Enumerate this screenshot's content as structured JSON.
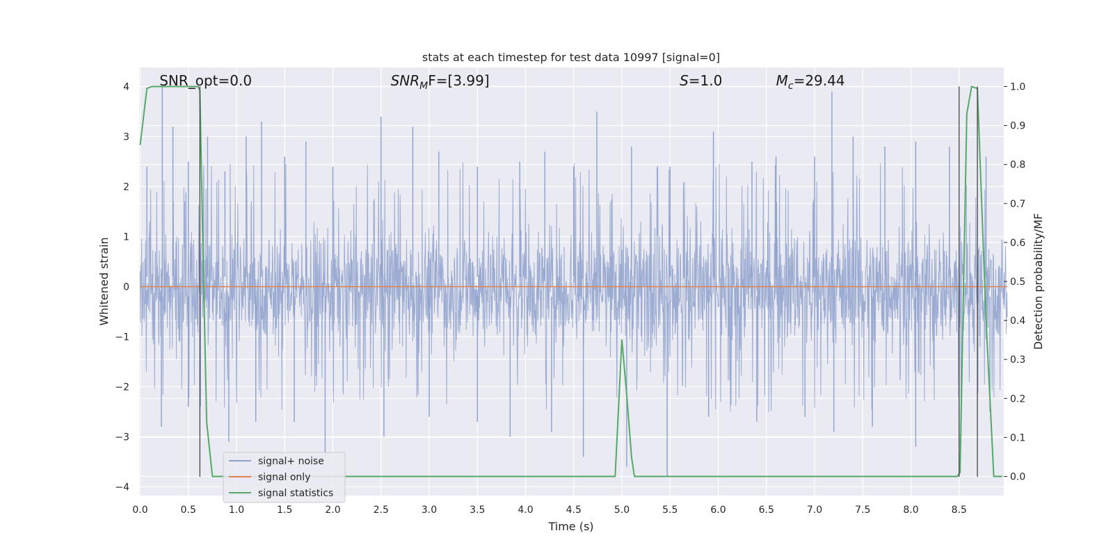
{
  "chart_data": {
    "type": "line",
    "title": "stats at each timestep for test data 10997 [signal=0]",
    "xlabel": "Time (s)",
    "ylabel": "Whitened strain",
    "y2label": "Detection probability/MF",
    "xlim": [
      0.0,
      9.0
    ],
    "ylim": [
      -4.2,
      4.2
    ],
    "y2lim": [
      -0.047,
      1.047
    ],
    "xticks": [
      0.0,
      0.5,
      1.0,
      1.5,
      2.0,
      2.5,
      3.0,
      3.5,
      4.0,
      4.5,
      5.0,
      5.5,
      6.0,
      6.5,
      7.0,
      7.5,
      8.0,
      8.5
    ],
    "xtick_labels": [
      "0.0",
      "0.5",
      "1.0",
      "1.5",
      "2.0",
      "2.5",
      "3.0",
      "3.5",
      "4.0",
      "4.5",
      "5.0",
      "5.5",
      "6.0",
      "6.5",
      "7.0",
      "7.5",
      "8.0",
      "8.5"
    ],
    "yticks": [
      4,
      3,
      2,
      1,
      0,
      -1,
      -2,
      -3,
      -4
    ],
    "ytick_labels": [
      "4",
      "3",
      "2",
      "1",
      "0",
      "−1",
      "−2",
      "−3",
      "−4"
    ],
    "y2ticks": [
      1.0,
      0.9,
      0.8,
      0.7,
      0.6,
      0.5,
      0.4,
      0.3,
      0.2,
      0.1,
      0.0
    ],
    "y2tick_labels": [
      "1.0",
      "0.9",
      "0.8",
      "0.7",
      "0.6",
      "0.5",
      "0.4",
      "0.3",
      "0.2",
      "0.1",
      "0.0"
    ],
    "grid": true,
    "legend_position": "lower-left",
    "annotations": {
      "snr_opt": {
        "x": 0.2,
        "text": "SNR_opt=0.0"
      },
      "snr_mf": {
        "x": 2.6,
        "prefix": "SNR",
        "sub": "M",
        "suffix": "F=[3.99]"
      },
      "s_val": {
        "x": 5.6,
        "prefix": "S",
        "suffix": "=1.0"
      },
      "mc_val": {
        "x": 6.6,
        "prefix": "M",
        "sub": "c",
        "suffix": "=29.44"
      }
    },
    "vlines": [
      {
        "x": 0.62,
        "ymin": -3.8,
        "ymax": 4.0
      },
      {
        "x": 8.5,
        "ymin": -3.8,
        "ymax": 4.0
      },
      {
        "x": 8.69,
        "ymin": -3.8,
        "ymax": 4.0
      }
    ],
    "series": [
      {
        "name": "signal+ noise",
        "color": "#8da0cb",
        "style": "noise",
        "x_range": [
          0.0,
          9.0
        ],
        "typical_envelope": [
          -1.5,
          1.7
        ],
        "peaks": [
          {
            "x": 0.07,
            "y": 2.4
          },
          {
            "x": 0.23,
            "y": 4.0
          },
          {
            "x": 0.34,
            "y": 3.2
          },
          {
            "x": 0.5,
            "y": 2.5
          },
          {
            "x": 0.7,
            "y": 3.0
          },
          {
            "x": 0.88,
            "y": 2.3
          },
          {
            "x": 1.1,
            "y": 3.0
          },
          {
            "x": 1.26,
            "y": 3.3
          },
          {
            "x": 1.5,
            "y": 2.6
          },
          {
            "x": 1.72,
            "y": 2.9
          },
          {
            "x": 2.0,
            "y": 2.4
          },
          {
            "x": 2.5,
            "y": 3.4
          },
          {
            "x": 2.83,
            "y": 3.2
          },
          {
            "x": 3.1,
            "y": 2.7
          },
          {
            "x": 3.5,
            "y": 2.4
          },
          {
            "x": 3.94,
            "y": 2.5
          },
          {
            "x": 4.2,
            "y": 2.7
          },
          {
            "x": 4.5,
            "y": 2.4
          },
          {
            "x": 4.74,
            "y": 3.5
          },
          {
            "x": 5.1,
            "y": 2.8
          },
          {
            "x": 5.5,
            "y": 2.4
          },
          {
            "x": 5.95,
            "y": 3.1
          },
          {
            "x": 6.35,
            "y": 2.5
          },
          {
            "x": 6.6,
            "y": 2.6
          },
          {
            "x": 7.0,
            "y": 2.6
          },
          {
            "x": 7.18,
            "y": 3.9
          },
          {
            "x": 7.4,
            "y": 3.0
          },
          {
            "x": 7.73,
            "y": 2.8
          },
          {
            "x": 8.05,
            "y": 2.9
          },
          {
            "x": 8.4,
            "y": 2.8
          },
          {
            "x": 8.78,
            "y": 2.6
          }
        ],
        "troughs": [
          {
            "x": 0.22,
            "y": -2.8
          },
          {
            "x": 0.5,
            "y": -2.4
          },
          {
            "x": 0.92,
            "y": -3.1
          },
          {
            "x": 1.2,
            "y": -2.7
          },
          {
            "x": 1.6,
            "y": -2.7
          },
          {
            "x": 1.92,
            "y": -3.4
          },
          {
            "x": 2.53,
            "y": -3.0
          },
          {
            "x": 3.0,
            "y": -2.6
          },
          {
            "x": 3.5,
            "y": -2.7
          },
          {
            "x": 3.84,
            "y": -3.0
          },
          {
            "x": 4.27,
            "y": -2.9
          },
          {
            "x": 4.6,
            "y": -3.4
          },
          {
            "x": 5.05,
            "y": -3.6
          },
          {
            "x": 5.47,
            "y": -3.8
          },
          {
            "x": 5.9,
            "y": -2.6
          },
          {
            "x": 6.4,
            "y": -2.7
          },
          {
            "x": 6.9,
            "y": -2.6
          },
          {
            "x": 7.2,
            "y": -2.9
          },
          {
            "x": 7.6,
            "y": -2.8
          },
          {
            "x": 8.05,
            "y": -3.2
          },
          {
            "x": 8.5,
            "y": -3.2
          },
          {
            "x": 8.82,
            "y": -2.5
          }
        ]
      },
      {
        "name": "signal only",
        "color": "#dd8452",
        "x": [
          0.0,
          9.0
        ],
        "y": [
          0.0,
          0.0
        ]
      },
      {
        "name": "signal statistics",
        "color": "#55a868",
        "axis": "right",
        "x": [
          0.0,
          0.07,
          0.12,
          0.6,
          0.62,
          0.65,
          0.69,
          0.75,
          4.93,
          5.0,
          5.05,
          5.1,
          5.13,
          8.48,
          8.51,
          8.58,
          8.63,
          8.69,
          8.78,
          8.86,
          8.95
        ],
        "y": [
          0.85,
          0.995,
          1.0,
          1.0,
          0.99,
          0.6,
          0.14,
          0.0,
          0.0,
          0.35,
          0.21,
          0.05,
          0.0,
          0.0,
          0.01,
          0.93,
          1.0,
          0.995,
          0.4,
          0.0,
          0.0
        ]
      }
    ]
  }
}
